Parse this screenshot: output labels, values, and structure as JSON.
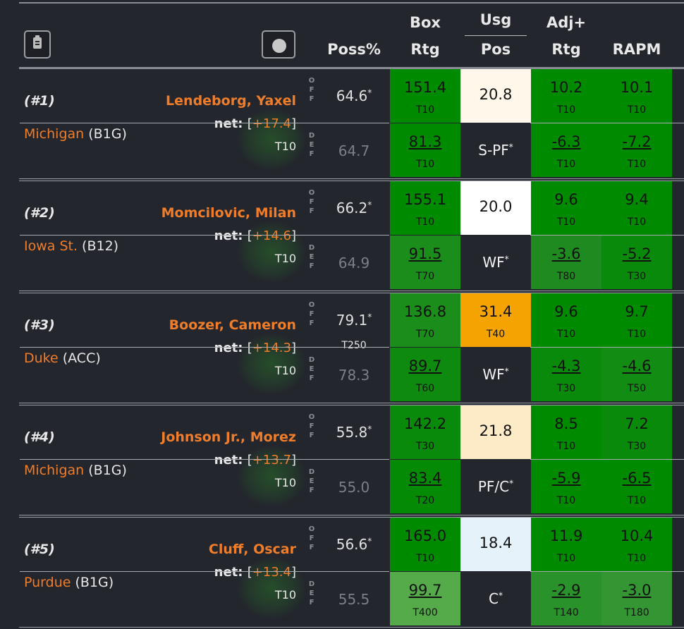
{
  "header": {
    "clipboard_icon": "clipboard-icon",
    "circle_icon": "circle-button-icon",
    "cols": {
      "poss": "Poss%",
      "box_top": "Box",
      "box_bot": "Rtg",
      "usg_top": "Usg",
      "usg_bot": "Pos",
      "adj_top": "Adj+",
      "adj_bot": "Rtg",
      "rapm": "RAPM"
    }
  },
  "labels": {
    "off": "OFF",
    "def": "DEF",
    "net": "net:"
  },
  "colors": {
    "green_dark": "#008a00",
    "green_mid": "#1f8a1f",
    "green_light": "#55aa4a",
    "orange": "#f5a300",
    "accent": "#f07d2a"
  },
  "players": [
    {
      "rank": "(#1)",
      "name": "Lendeborg, Yaxel",
      "team": "Michigan",
      "conf": "(B1G)",
      "net": "+17.4",
      "net_rank": "T10",
      "off": {
        "poss": "64.6",
        "poss_star": "*",
        "poss_rank": "",
        "box": "151.4",
        "box_rank": "T10",
        "usg": "20.8",
        "usg_rank": "",
        "adj": "10.2",
        "adj_rank": "T10",
        "rapm": "10.1",
        "rapm_rank": "T10"
      },
      "def": {
        "poss": "64.7",
        "box": "81.3",
        "box_rank": "T10",
        "pos": "S-PF",
        "adj": "-6.3",
        "adj_rank": "T10",
        "rapm": "-7.2",
        "rapm_rank": "T10"
      }
    },
    {
      "rank": "(#2)",
      "name": "Momcilovic, Milan",
      "team": "Iowa St.",
      "conf": "(B12)",
      "net": "+14.6",
      "net_rank": "T10",
      "off": {
        "poss": "66.2",
        "poss_star": "*",
        "poss_rank": "",
        "box": "155.1",
        "box_rank": "T10",
        "usg": "20.0",
        "usg_rank": "",
        "adj": "9.6",
        "adj_rank": "T10",
        "rapm": "9.4",
        "rapm_rank": "T10"
      },
      "def": {
        "poss": "64.9",
        "box": "91.5",
        "box_rank": "T70",
        "pos": "WF",
        "adj": "-3.6",
        "adj_rank": "T80",
        "rapm": "-5.2",
        "rapm_rank": "T30"
      }
    },
    {
      "rank": "(#3)",
      "name": "Boozer, Cameron",
      "team": "Duke",
      "conf": "(ACC)",
      "net": "+14.3",
      "net_rank": "T10",
      "off": {
        "poss": "79.1",
        "poss_star": "*",
        "poss_rank": "T250",
        "box": "136.8",
        "box_rank": "T70",
        "usg": "31.4",
        "usg_rank": "T40",
        "adj": "9.6",
        "adj_rank": "T10",
        "rapm": "9.7",
        "rapm_rank": "T10"
      },
      "def": {
        "poss": "78.3",
        "box": "89.7",
        "box_rank": "T60",
        "pos": "WF",
        "adj": "-4.3",
        "adj_rank": "T30",
        "rapm": "-4.6",
        "rapm_rank": "T50"
      }
    },
    {
      "rank": "(#4)",
      "name": "Johnson Jr., Morez",
      "team": "Michigan",
      "conf": "(B1G)",
      "net": "+13.7",
      "net_rank": "T10",
      "off": {
        "poss": "55.8",
        "poss_star": "*",
        "poss_rank": "",
        "box": "142.2",
        "box_rank": "T30",
        "usg": "21.8",
        "usg_rank": "",
        "adj": "8.5",
        "adj_rank": "T10",
        "rapm": "7.2",
        "rapm_rank": "T30"
      },
      "def": {
        "poss": "55.0",
        "box": "83.4",
        "box_rank": "T20",
        "pos": "PF/C",
        "adj": "-5.9",
        "adj_rank": "T10",
        "rapm": "-6.5",
        "rapm_rank": "T10"
      }
    },
    {
      "rank": "(#5)",
      "name": "Cluff, Oscar",
      "team": "Purdue",
      "conf": "(B1G)",
      "net": "+13.4",
      "net_rank": "T10",
      "off": {
        "poss": "56.6",
        "poss_star": "*",
        "poss_rank": "",
        "box": "165.0",
        "box_rank": "T10",
        "usg": "18.4",
        "usg_rank": "",
        "adj": "11.9",
        "adj_rank": "T10",
        "rapm": "10.4",
        "rapm_rank": "T10"
      },
      "def": {
        "poss": "55.5",
        "box": "99.7",
        "box_rank": "T400",
        "pos": "C",
        "adj": "-2.9",
        "adj_rank": "T140",
        "rapm": "-3.0",
        "rapm_rank": "T180"
      }
    }
  ]
}
